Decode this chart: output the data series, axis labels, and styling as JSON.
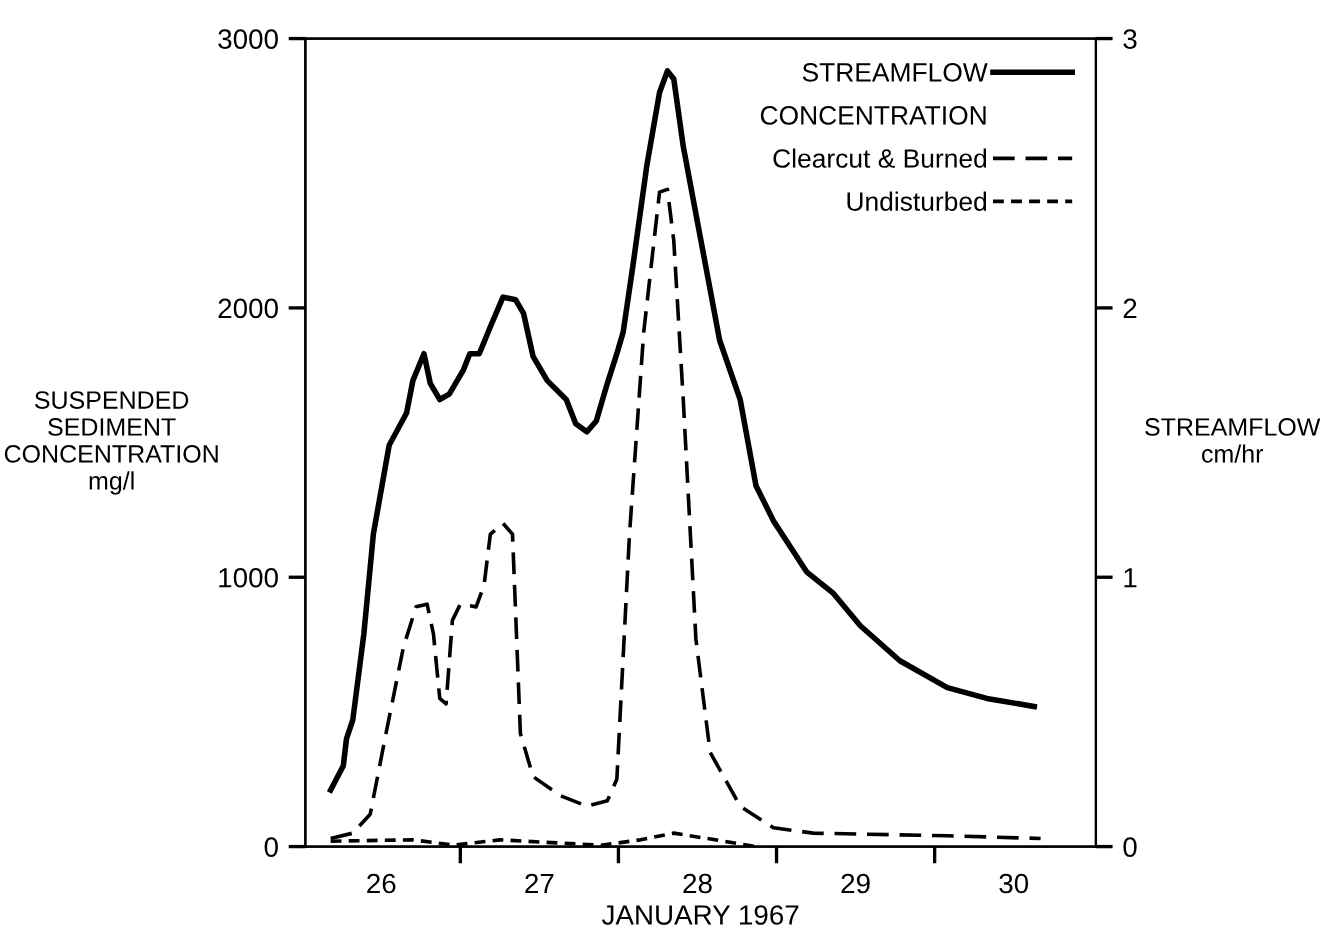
{
  "chart_data": {
    "type": "line",
    "xlabel": "JANUARY 1967",
    "ylabel": "SUSPENDED\nSEDIMENT\nCONCENTRATION\nmg/l",
    "y2label": "STREAMFLOW\ncm/hr",
    "legend_title": "CONCENTRATION",
    "legend": "top right",
    "grid": false,
    "marker": "none",
    "xlim": [
      25.52,
      30.52
    ],
    "xticks": [
      26,
      {
        "value": 26.5,
        "label": null
      },
      27,
      {
        "value": 27.5,
        "label": null
      },
      28,
      {
        "value": 28.5,
        "label": null
      },
      29,
      {
        "value": 29.5,
        "label": null
      },
      30
    ],
    "ylim": [
      0,
      3000
    ],
    "yticks": [
      0,
      1000,
      2000,
      3000
    ],
    "y2lim": [
      0,
      3
    ],
    "y2ticks": [
      0,
      1,
      2,
      3
    ],
    "series": [
      {
        "name": "STREAMFLOW",
        "axis": "y2",
        "color": "#000000",
        "line_style": "solid",
        "x": [
          25.68,
          25.76,
          25.78,
          25.82,
          25.89,
          25.95,
          26.05,
          26.16,
          26.2,
          26.27,
          26.31,
          26.37,
          26.43,
          26.52,
          26.56,
          26.62,
          26.69,
          26.77,
          26.85,
          26.9,
          26.96,
          27.05,
          27.17,
          27.23,
          27.3,
          27.36,
          27.43,
          27.49,
          27.53,
          27.59,
          27.68,
          27.76,
          27.81,
          27.85,
          27.91,
          27.99,
          28.14,
          28.27,
          28.37,
          28.48,
          28.69,
          28.86,
          29.03,
          29.28,
          29.58,
          29.83,
          30.13
        ],
        "values": [
          0.21,
          0.3,
          0.4,
          0.47,
          0.79,
          1.16,
          1.49,
          1.61,
          1.73,
          1.83,
          1.72,
          1.66,
          1.68,
          1.77,
          1.83,
          1.83,
          1.93,
          2.04,
          2.03,
          1.98,
          1.82,
          1.73,
          1.66,
          1.57,
          1.54,
          1.58,
          1.72,
          1.83,
          1.91,
          2.15,
          2.53,
          2.8,
          2.88,
          2.85,
          2.6,
          2.35,
          1.88,
          1.66,
          1.34,
          1.21,
          1.02,
          0.94,
          0.82,
          0.69,
          0.59,
          0.55,
          0.52
        ]
      },
      {
        "name": "Clearcut & Burned",
        "axis": "y",
        "color": "#000000",
        "line_style": "dashed",
        "x": [
          25.68,
          25.82,
          25.93,
          26.03,
          26.14,
          26.22,
          26.29,
          26.33,
          26.37,
          26.41,
          26.45,
          26.5,
          26.6,
          26.65,
          26.69,
          26.77,
          26.83,
          26.88,
          26.96,
          27.13,
          27.3,
          27.43,
          27.49,
          27.57,
          27.66,
          27.76,
          27.81,
          27.85,
          27.91,
          27.99,
          28.08,
          28.27,
          28.48,
          28.73,
          29.58,
          30.17
        ],
        "values": [
          30,
          50,
          120,
          420,
          740,
          890,
          900,
          790,
          550,
          530,
          840,
          900,
          890,
          970,
          1160,
          1200,
          1160,
          420,
          260,
          190,
          150,
          170,
          250,
          1160,
          1910,
          2430,
          2440,
          2250,
          1660,
          770,
          350,
          150,
          70,
          50,
          40,
          30
        ]
      },
      {
        "name": "Undisturbed",
        "axis": "y",
        "color": "#000000",
        "line_style": "dotted",
        "x": [
          25.68,
          26.2,
          26.46,
          26.75,
          27.39,
          27.64,
          27.85,
          28.06,
          28.32,
          28.37
        ],
        "values": [
          20,
          25,
          5,
          25,
          5,
          25,
          50,
          30,
          5,
          0
        ]
      }
    ]
  }
}
